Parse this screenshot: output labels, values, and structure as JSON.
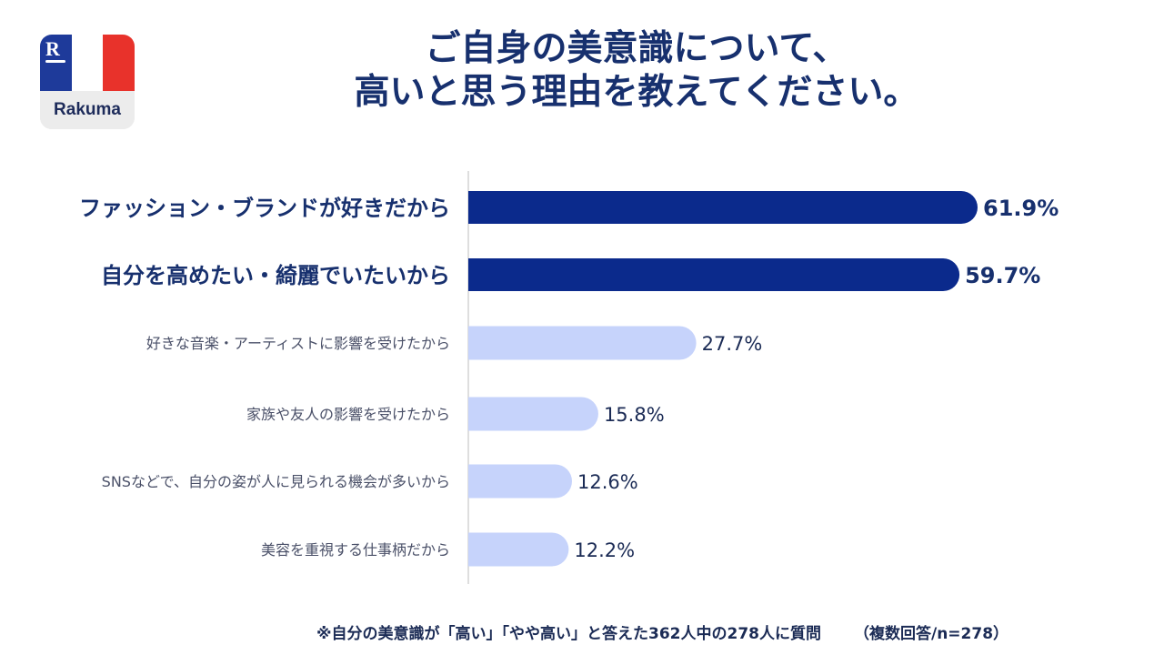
{
  "logo": {
    "wordmark": "Rakuma",
    "mark": "R",
    "colors": [
      "#1e3a9a",
      "#ffffff",
      "#e8322b"
    ]
  },
  "header": {
    "title_line1": "ご自身の美意識について、",
    "title_line2": "高いと思う理由を教えてください。"
  },
  "chart_data": {
    "type": "bar",
    "orientation": "horizontal",
    "unit": "%",
    "categories": [
      "ファッション・ブランドが好きだから",
      "自分を高めたい・綺麗でいたいから",
      "好きな音楽・アーティストに影響を受けたから",
      "家族や友人の影響を受けたから",
      "SNSなどで、自分の姿が人に見られる機会が多いから",
      "美容を重視する仕事柄だから"
    ],
    "values": [
      61.9,
      59.7,
      27.7,
      15.8,
      12.6,
      12.2
    ],
    "value_labels": [
      "61.9%",
      "59.7%",
      "27.7%",
      "15.8%",
      "12.6%",
      "12.2%"
    ],
    "highlighted": [
      true,
      true,
      false,
      false,
      false,
      false
    ],
    "colors": {
      "highlight": "#0b2a8c",
      "normal": "#c6d3fb",
      "highlight_text": "#17306e",
      "normal_text": "#1b2b55",
      "normal_label": "#4a5068"
    },
    "xlim": [
      0,
      100
    ],
    "grid": false,
    "legend": "none"
  },
  "footnote": {
    "main": "※自分の美意識が「高い」「やや高い」と答えた362人中の278人に質問",
    "sample": "（複数回答/n=278）"
  }
}
